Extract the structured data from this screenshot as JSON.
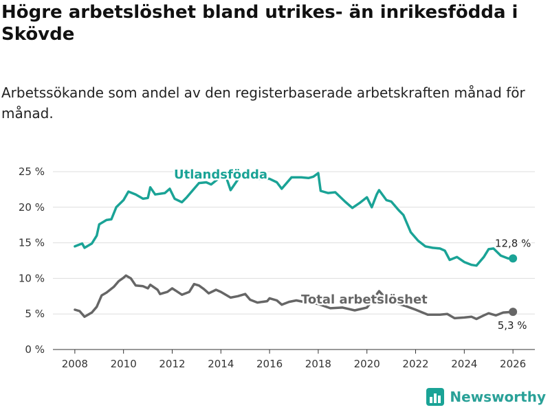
{
  "title": "Högre arbetslöshet bland utrikes- än inrikesfödda i Skövde",
  "subtitle": "Arbetssökande som andel av den registerbaserade arbetskraften månad för månad.",
  "brand": "Newsworthy",
  "colors": {
    "utland": "#1aa396",
    "total": "#666666",
    "grid": "#dddddd",
    "axis": "#333333"
  },
  "chart_data": {
    "type": "line",
    "title": "Högre arbetslöshet bland utrikes- än inrikesfödda i Skövde",
    "xlabel": "",
    "ylabel": "",
    "xlim": [
      2007.1,
      2026.9
    ],
    "ylim": [
      0,
      25
    ],
    "grid": true,
    "x_ticks": [
      2008,
      2010,
      2012,
      2014,
      2016,
      2018,
      2020,
      2022,
      2024,
      2026
    ],
    "y_ticks": [
      {
        "value": 0,
        "label": "0 %"
      },
      {
        "value": 5,
        "label": "5 %"
      },
      {
        "value": 10,
        "label": "10 %"
      },
      {
        "value": 15,
        "label": "15 %"
      },
      {
        "value": 20,
        "label": "20 %"
      },
      {
        "value": 25,
        "label": "25 %"
      }
    ],
    "series": [
      {
        "name": "Utlandsfödda",
        "end_label": "12,8 %",
        "points": [
          [
            2008.0,
            14.5
          ],
          [
            2008.3,
            14.9
          ],
          [
            2008.4,
            14.3
          ],
          [
            2008.7,
            14.9
          ],
          [
            2008.9,
            16.0
          ],
          [
            2009.0,
            17.6
          ],
          [
            2009.3,
            18.2
          ],
          [
            2009.5,
            18.3
          ],
          [
            2009.7,
            20.0
          ],
          [
            2010.0,
            21.0
          ],
          [
            2010.2,
            22.2
          ],
          [
            2010.5,
            21.8
          ],
          [
            2010.8,
            21.2
          ],
          [
            2011.0,
            21.3
          ],
          [
            2011.1,
            22.8
          ],
          [
            2011.3,
            21.8
          ],
          [
            2011.7,
            22.0
          ],
          [
            2011.9,
            22.6
          ],
          [
            2012.1,
            21.2
          ],
          [
            2012.4,
            20.7
          ],
          [
            2012.6,
            21.4
          ],
          [
            2012.9,
            22.6
          ],
          [
            2013.1,
            23.4
          ],
          [
            2013.4,
            23.5
          ],
          [
            2013.6,
            23.2
          ],
          [
            2014.0,
            24.3
          ],
          [
            2014.2,
            24.4
          ],
          [
            2014.4,
            22.4
          ],
          [
            2014.8,
            24.4
          ],
          [
            2015.0,
            24.5
          ],
          [
            2015.5,
            24.0
          ],
          [
            2016.0,
            24.0
          ],
          [
            2016.3,
            23.5
          ],
          [
            2016.5,
            22.6
          ],
          [
            2016.9,
            24.2
          ],
          [
            2017.3,
            24.2
          ],
          [
            2017.6,
            24.1
          ],
          [
            2017.8,
            24.3
          ],
          [
            2018.0,
            24.8
          ],
          [
            2018.1,
            22.3
          ],
          [
            2018.4,
            22.0
          ],
          [
            2018.7,
            22.1
          ],
          [
            2019.1,
            20.8
          ],
          [
            2019.4,
            19.9
          ],
          [
            2019.7,
            20.6
          ],
          [
            2020.0,
            21.4
          ],
          [
            2020.2,
            20.0
          ],
          [
            2020.4,
            21.8
          ],
          [
            2020.5,
            22.4
          ],
          [
            2020.8,
            21.0
          ],
          [
            2021.0,
            20.8
          ],
          [
            2021.3,
            19.6
          ],
          [
            2021.5,
            18.9
          ],
          [
            2021.8,
            16.5
          ],
          [
            2022.1,
            15.3
          ],
          [
            2022.4,
            14.5
          ],
          [
            2022.7,
            14.3
          ],
          [
            2023.0,
            14.2
          ],
          [
            2023.2,
            13.9
          ],
          [
            2023.4,
            12.6
          ],
          [
            2023.7,
            13.0
          ],
          [
            2024.0,
            12.3
          ],
          [
            2024.3,
            11.9
          ],
          [
            2024.5,
            11.8
          ],
          [
            2024.8,
            13.0
          ],
          [
            2025.0,
            14.1
          ],
          [
            2025.2,
            14.2
          ],
          [
            2025.5,
            13.2
          ],
          [
            2025.8,
            12.8
          ],
          [
            2026.0,
            12.8
          ]
        ]
      },
      {
        "name": "Total arbetslöshet",
        "end_label": "5,3 %",
        "points": [
          [
            2008.0,
            5.6
          ],
          [
            2008.2,
            5.4
          ],
          [
            2008.4,
            4.6
          ],
          [
            2008.7,
            5.2
          ],
          [
            2008.9,
            6.0
          ],
          [
            2009.1,
            7.6
          ],
          [
            2009.3,
            8.0
          ],
          [
            2009.6,
            8.8
          ],
          [
            2009.8,
            9.6
          ],
          [
            2010.0,
            10.1
          ],
          [
            2010.1,
            10.4
          ],
          [
            2010.3,
            10.0
          ],
          [
            2010.5,
            9.0
          ],
          [
            2010.8,
            8.9
          ],
          [
            2011.0,
            8.6
          ],
          [
            2011.1,
            9.1
          ],
          [
            2011.4,
            8.4
          ],
          [
            2011.5,
            7.8
          ],
          [
            2011.8,
            8.1
          ],
          [
            2012.0,
            8.6
          ],
          [
            2012.4,
            7.7
          ],
          [
            2012.7,
            8.1
          ],
          [
            2012.9,
            9.2
          ],
          [
            2013.1,
            9.0
          ],
          [
            2013.3,
            8.5
          ],
          [
            2013.5,
            7.9
          ],
          [
            2013.8,
            8.4
          ],
          [
            2014.0,
            8.1
          ],
          [
            2014.4,
            7.3
          ],
          [
            2014.7,
            7.5
          ],
          [
            2015.0,
            7.8
          ],
          [
            2015.2,
            7.0
          ],
          [
            2015.5,
            6.6
          ],
          [
            2015.9,
            6.8
          ],
          [
            2016.0,
            7.2
          ],
          [
            2016.3,
            6.9
          ],
          [
            2016.5,
            6.3
          ],
          [
            2016.8,
            6.7
          ],
          [
            2017.1,
            6.9
          ],
          [
            2017.4,
            6.7
          ],
          [
            2018.0,
            6.4
          ],
          [
            2018.5,
            5.8
          ],
          [
            2019.0,
            5.9
          ],
          [
            2019.5,
            5.5
          ],
          [
            2020.0,
            5.9
          ],
          [
            2020.5,
            8.2
          ],
          [
            2020.8,
            7.1
          ],
          [
            2021.2,
            6.5
          ],
          [
            2021.6,
            6.1
          ],
          [
            2022.0,
            5.6
          ],
          [
            2022.5,
            4.9
          ],
          [
            2023.0,
            4.9
          ],
          [
            2023.3,
            5.0
          ],
          [
            2023.6,
            4.4
          ],
          [
            2024.0,
            4.5
          ],
          [
            2024.3,
            4.6
          ],
          [
            2024.5,
            4.3
          ],
          [
            2024.8,
            4.8
          ],
          [
            2025.0,
            5.1
          ],
          [
            2025.3,
            4.8
          ],
          [
            2025.6,
            5.2
          ],
          [
            2026.0,
            5.3
          ]
        ]
      }
    ]
  }
}
